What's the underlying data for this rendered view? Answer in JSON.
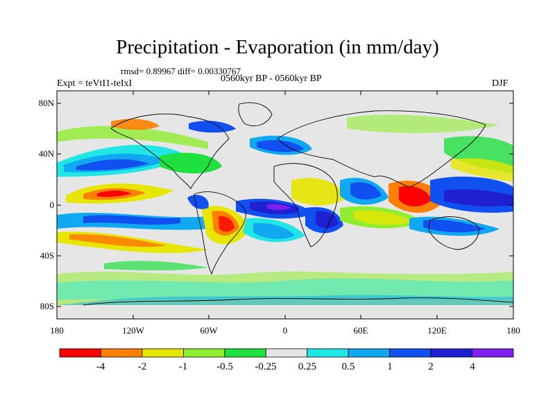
{
  "header": {
    "title": "Precipitation - Evaporation (in mm/day)",
    "stats": "rmsd= 0.89967 diff= 0.00330767",
    "experiment": "Expt = teVtI1-teIxI",
    "period": "0560kyr BP - 0560kyr BP",
    "season": "DJF"
  },
  "axes": {
    "lat_ticks": [
      "80N",
      "40N",
      "0",
      "40S",
      "80S"
    ],
    "lon_ticks": [
      "180",
      "120W",
      "60W",
      "0",
      "60E",
      "120E",
      "180"
    ]
  },
  "colorbar": {
    "labels": [
      "-4",
      "-2",
      "-1",
      "-0.5",
      "-0.25",
      "0.25",
      "0.5",
      "1",
      "2",
      "4"
    ],
    "colors": [
      "#ff0000",
      "#ff8000",
      "#e6e600",
      "#90ee30",
      "#20e040",
      "#e6e6e6",
      "#20e6e6",
      "#10a8f0",
      "#1050f0",
      "#2020d0",
      "#8020f0"
    ]
  }
}
